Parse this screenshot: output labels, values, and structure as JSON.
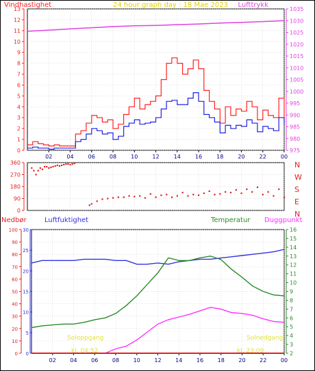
{
  "colors": {
    "wind": "#ff2020",
    "wind_avg": "#2020e0",
    "pressure": "#e040e0",
    "direction": "#e02020",
    "humidity": "#3030e0",
    "temperature": "#2a8a2a",
    "dewpoint": "#ff30ff",
    "rain": "#e02020",
    "sunrise_text": "#e0e040",
    "grid": "#c0c0c0",
    "frame": "#000000",
    "title": "#e0d000"
  },
  "chart_data": [
    {
      "type": "line",
      "title": "24 hour graph day : 18 Mae 2023",
      "ylabel_left": "Vindhastighet",
      "ylabel_right": "Lufttrykk",
      "x_ticks": [
        "02",
        "04",
        "06",
        "08",
        "10",
        "12",
        "14",
        "16",
        "18",
        "20",
        "22",
        "00"
      ],
      "y_left_ticks": [
        "0",
        "1",
        "2",
        "3",
        "4",
        "5",
        "6",
        "7",
        "8",
        "9",
        "10",
        "11",
        "12",
        "13"
      ],
      "y_right_ticks": [
        "975",
        "980",
        "985",
        "990",
        "995",
        "1000",
        "1005",
        "1010",
        "1015",
        "1020",
        "1025",
        "1030",
        "1035"
      ],
      "ylim_left": [
        0,
        13
      ],
      "ylim_right": [
        975,
        1035
      ],
      "series": [
        {
          "name": "gust",
          "axis": "left",
          "x": [
            0,
            0.5,
            1,
            1.5,
            2,
            2.5,
            3,
            3.5,
            4,
            4.5,
            5,
            5.5,
            6,
            6.5,
            7,
            7.5,
            8,
            8.5,
            9,
            9.5,
            10,
            10.5,
            11,
            11.5,
            12,
            12.5,
            13,
            13.5,
            14,
            14.5,
            15,
            15.5,
            16,
            16.5,
            17,
            17.5,
            18,
            18.5,
            19,
            19.5,
            20,
            20.5,
            21,
            21.5,
            22,
            22.5,
            23,
            23.5,
            24
          ],
          "y": [
            0.5,
            0.8,
            0.6,
            0.5,
            0.4,
            0.5,
            0.4,
            0.4,
            0.4,
            1.5,
            1.8,
            2.5,
            3.2,
            3.0,
            2.6,
            2.8,
            2.0,
            2.4,
            3.3,
            4.0,
            4.8,
            3.8,
            4.2,
            4.5,
            5.0,
            6.5,
            8.0,
            8.5,
            8.0,
            7.0,
            7.5,
            8.3,
            7.5,
            5.5,
            4.5,
            3.8,
            2.5,
            4.0,
            3.2,
            3.8,
            3.6,
            4.5,
            4.0,
            2.8,
            3.7,
            3.2,
            3.0,
            4.8,
            2.5
          ]
        },
        {
          "name": "average",
          "axis": "left",
          "x": [
            0,
            0.5,
            1,
            1.5,
            2,
            2.5,
            3,
            3.5,
            4,
            4.5,
            5,
            5.5,
            6,
            6.5,
            7,
            7.5,
            8,
            8.5,
            9,
            9.5,
            10,
            10.5,
            11,
            11.5,
            12,
            12.5,
            13,
            13.5,
            14,
            14.5,
            15,
            15.5,
            16,
            16.5,
            17,
            17.5,
            18,
            18.5,
            19,
            19.5,
            20,
            20.5,
            21,
            21.5,
            22,
            22.5,
            23,
            23.5,
            24
          ],
          "y": [
            0.2,
            0.3,
            0.2,
            0.2,
            0.1,
            0.2,
            0.2,
            0.2,
            0.2,
            0.8,
            1.0,
            1.5,
            2.0,
            1.8,
            1.5,
            1.6,
            1.0,
            1.3,
            2.2,
            2.5,
            2.8,
            2.4,
            2.5,
            2.6,
            3.0,
            3.8,
            4.5,
            4.6,
            4.2,
            4.2,
            4.8,
            5.3,
            4.5,
            3.3,
            3.0,
            2.6,
            1.6,
            2.3,
            2.0,
            2.3,
            2.2,
            2.8,
            2.5,
            1.7,
            2.2,
            2.0,
            1.8,
            3.0,
            2.4
          ]
        },
        {
          "name": "pressure",
          "axis": "right",
          "x": [
            0,
            2,
            4,
            6,
            8,
            10,
            12,
            14,
            16,
            18,
            20,
            22,
            24
          ],
          "y": [
            1025.5,
            1026,
            1026.5,
            1027,
            1027.5,
            1027.8,
            1028,
            1028.3,
            1028.6,
            1029,
            1029.3,
            1029.6,
            1030
          ]
        }
      ]
    },
    {
      "type": "scatter",
      "title": "",
      "y_ticks": [
        "0",
        "90",
        "180",
        "270",
        "360"
      ],
      "y_right_labels": [
        "N",
        "W",
        "S",
        "E",
        "N"
      ],
      "ylim": [
        0,
        360
      ],
      "series": [
        {
          "name": "direction",
          "x": [
            0.4,
            0.6,
            0.8,
            1.0,
            1.2,
            1.4,
            1.6,
            1.8,
            2.0,
            2.2,
            2.4,
            2.6,
            2.8,
            3.0,
            3.2,
            3.4,
            3.6,
            3.8,
            4.0,
            4.2,
            4.4,
            5.8,
            6.0,
            6.5,
            7.0,
            7.5,
            8.0,
            8.5,
            9.0,
            9.5,
            10.0,
            10.5,
            11.0,
            11.5,
            12.0,
            12.5,
            13.0,
            13.5,
            14.0,
            14.5,
            15.0,
            15.5,
            16.0,
            16.5,
            17.0,
            17.5,
            18.0,
            18.5,
            19.0,
            19.5,
            20.0,
            20.5,
            21.0,
            21.5,
            22.0,
            22.5,
            23.0,
            23.5,
            24.0
          ],
          "y": [
            320,
            300,
            270,
            300,
            320,
            310,
            330,
            330,
            320,
            325,
            330,
            335,
            340,
            335,
            340,
            345,
            350,
            350,
            345,
            350,
            355,
            40,
            50,
            70,
            85,
            90,
            95,
            100,
            100,
            110,
            105,
            110,
            95,
            125,
            100,
            115,
            120,
            100,
            110,
            135,
            110,
            120,
            115,
            130,
            145,
            120,
            125,
            140,
            135,
            155,
            130,
            160,
            140,
            175,
            120,
            140,
            110,
            160,
            100
          ]
        }
      ]
    },
    {
      "type": "line",
      "title": "",
      "labels": {
        "rain": "Nedbør",
        "humidity": "Luftfuktighet",
        "temperature": "Temperatur",
        "dewpoint": "Duggpunkt"
      },
      "sunrise_label": "Soloppgang",
      "sunrise_time": "kl. 04:52",
      "sunset_label": "Solnedgang",
      "sunset_time": "kl. 23:09",
      "x_ticks": [
        "02",
        "04",
        "06",
        "08",
        "10",
        "12",
        "14",
        "16",
        "18",
        "20",
        "22",
        "00"
      ],
      "y_rain_ticks": [
        "0",
        "10",
        "20",
        "30",
        "40",
        "50",
        "60",
        "70",
        "80",
        "90",
        "100"
      ],
      "y_humidity_ticks": [
        "0",
        "5",
        "10",
        "15",
        "20",
        "25",
        "30"
      ],
      "y_temp_ticks": [
        "2",
        "3",
        "4",
        "5",
        "6",
        "7",
        "8",
        "9",
        "10",
        "11",
        "12",
        "13",
        "14",
        "15",
        "16"
      ],
      "ylim_rain": [
        0,
        100
      ],
      "ylim_humidity": [
        0,
        30
      ],
      "ylim_temp": [
        2,
        16
      ],
      "series": [
        {
          "name": "humidity",
          "axis": "rain",
          "x": [
            0,
            1,
            2,
            3,
            4,
            5,
            6,
            7,
            8,
            9,
            10,
            11,
            12,
            13,
            14,
            15,
            16,
            17,
            18,
            19,
            20,
            21,
            22,
            23,
            24
          ],
          "y": [
            73,
            75,
            75,
            75,
            75,
            76,
            76,
            76,
            75,
            75,
            72,
            72,
            73,
            72,
            74,
            75,
            76,
            76,
            77,
            78,
            79,
            80,
            81,
            82,
            84
          ]
        },
        {
          "name": "temperature",
          "axis": "temp",
          "x": [
            0,
            1,
            2,
            3,
            4,
            5,
            6,
            7,
            8,
            9,
            10,
            11,
            12,
            13,
            14,
            15,
            16,
            17,
            18,
            19,
            20,
            21,
            22,
            23,
            24
          ],
          "y": [
            4.9,
            5.1,
            5.2,
            5.3,
            5.3,
            5.5,
            5.8,
            6.0,
            6.5,
            7.4,
            8.5,
            9.8,
            11.1,
            12.8,
            12.5,
            12.5,
            12.8,
            13.0,
            12.6,
            11.5,
            10.6,
            9.6,
            9.0,
            8.6,
            8.5
          ]
        },
        {
          "name": "dewpoint",
          "axis": "temp",
          "x": [
            0,
            1,
            2,
            3,
            4,
            5,
            6,
            7,
            8,
            9,
            10,
            11,
            12,
            13,
            14,
            15,
            16,
            17,
            18,
            19,
            20,
            21,
            22,
            23,
            24
          ],
          "y": [
            1.5,
            1.5,
            1.5,
            1.5,
            1.5,
            1.5,
            1.8,
            2.0,
            2.5,
            2.8,
            3.5,
            4.4,
            5.3,
            5.8,
            6.1,
            6.4,
            6.8,
            7.2,
            7.0,
            6.6,
            6.5,
            6.3,
            5.9,
            5.6,
            5.5
          ]
        },
        {
          "name": "rain",
          "axis": "rain",
          "x": [
            0,
            24
          ],
          "y": [
            0,
            0
          ]
        }
      ]
    }
  ]
}
